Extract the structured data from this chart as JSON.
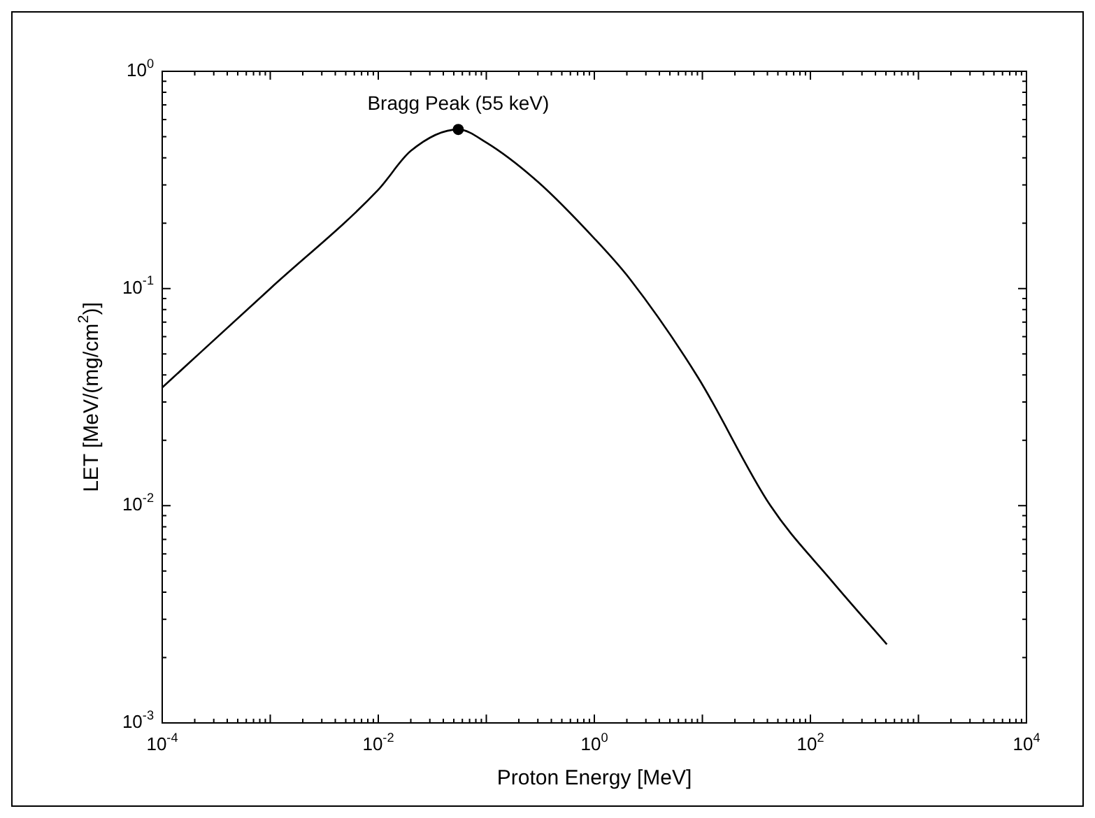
{
  "chart_data": {
    "type": "line",
    "xlabel": "Proton Energy [MeV]",
    "ylabel": "LET [MeV/(mg/cm$^{2}$)]",
    "log": "xy",
    "marker": "none",
    "line_style": "solid",
    "xlim": [
      0.0001,
      10000
    ],
    "ylim": [
      0.001,
      1
    ],
    "xticks": [
      {
        "value": 0.0001,
        "label": "10$^{-4}$"
      },
      {
        "value": 0.01,
        "label": "10$^{-2}$"
      },
      {
        "value": 1,
        "label": "10$^{0}$"
      },
      {
        "value": 100,
        "label": "10$^{2}$"
      },
      {
        "value": 10000,
        "label": "10$^{4}$"
      }
    ],
    "yticks": [
      {
        "value": 0.001,
        "label": "10$^{-3}$"
      },
      {
        "value": 0.01,
        "label": "10$^{-2}$"
      },
      {
        "value": 0.1,
        "label": "10$^{-1}$"
      },
      {
        "value": 1,
        "label": "10$^{0}$"
      }
    ],
    "x": [
      0.0001,
      0.001,
      0.01,
      0.02,
      0.055,
      0.1,
      0.3,
      1,
      2.15,
      9.1,
      42.7,
      158,
      510
    ],
    "series": [
      {
        "color": "#000000",
        "values": [
          0.035,
          0.1,
          0.285,
          0.43,
          0.54,
          0.47,
          0.31,
          0.17,
          0.11,
          0.039,
          0.01,
          0.0045,
          0.0023
        ]
      }
    ],
    "annotations": [
      {
        "text": "Bragg Peak (55 keV)",
        "x": 0.055,
        "y": 0.54
      }
    ]
  }
}
